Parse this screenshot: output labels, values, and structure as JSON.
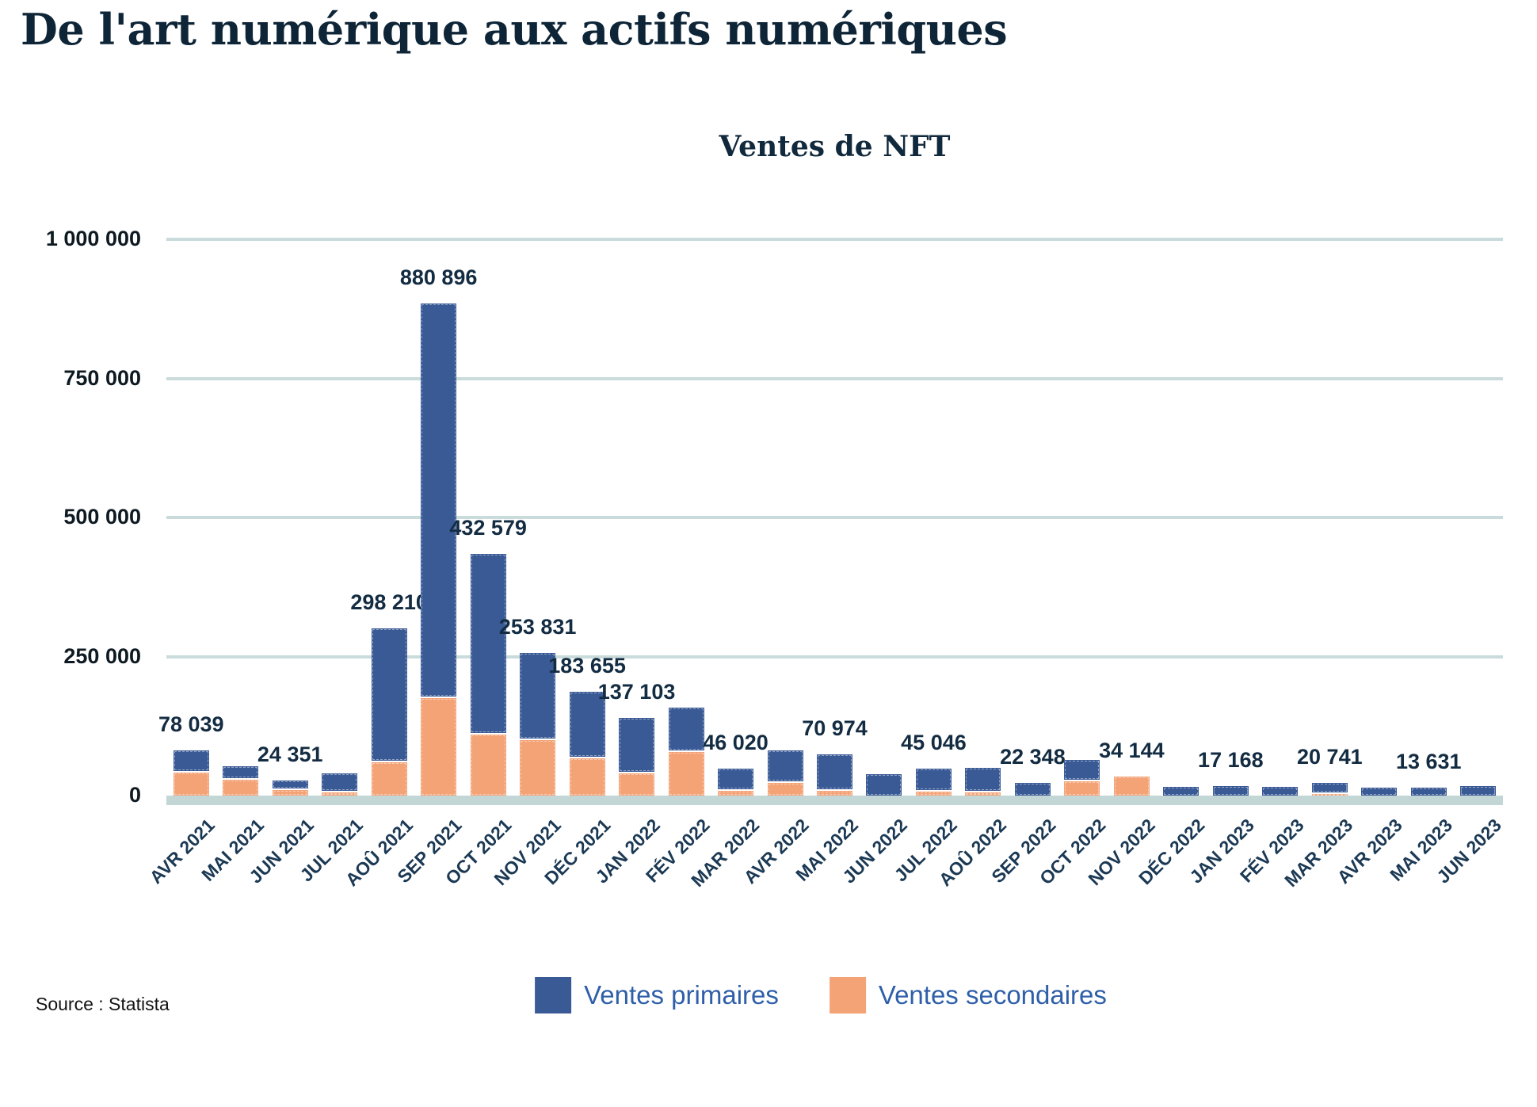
{
  "page": {
    "title": "De l'art numérique aux actifs numériques",
    "source": "Source : Statista"
  },
  "chart_data": {
    "type": "bar",
    "stacked": true,
    "title": "Ventes de NFT",
    "xlabel": "",
    "ylabel": "",
    "ylim": [
      0,
      1000000
    ],
    "grid": true,
    "legend_position": "bottom",
    "colors": {
      "primary": "#3a5a96",
      "secondary": "#f4a377",
      "gridline": "#c9dbdb",
      "axis_band": "#c3d6d6",
      "label_text": "#132c42"
    },
    "yticks": [
      {
        "value": 1000000,
        "label": "1 000 000"
      },
      {
        "value": 750000,
        "label": "750 000"
      },
      {
        "value": 500000,
        "label": "500 000"
      },
      {
        "value": 250000,
        "label": "250 000"
      },
      {
        "value": 0,
        "label": "0"
      }
    ],
    "categories": [
      "AVR 2021",
      "MAI 2021",
      "JUN 2021",
      "JUL 2021",
      "AOÛ 2021",
      "SEP 2021",
      "OCT 2021",
      "NOV 2021",
      "DÉC 2021",
      "JAN 2022",
      "FÉV 2022",
      "MAR 2022",
      "AVR 2022",
      "MAI 2022",
      "JUN 2022",
      "JUL 2022",
      "AOÛ 2022",
      "SEP 2022",
      "OCT 2022",
      "NOV 2022",
      "DÉC 2022",
      "JAN 2023",
      "FÉV 2023",
      "MAR 2023",
      "AVR 2023",
      "MAI 2023",
      "JUN 2023"
    ],
    "series": [
      {
        "name": "Ventes primaires",
        "color": "#3a5a96",
        "values": [
          37039,
          21000,
          14351,
          31000,
          238210,
          705896,
          322579,
          153831,
          116655,
          97103,
          77000,
          37020,
          55000,
          61974,
          38000,
          38046,
          41000,
          22348,
          36000,
          0,
          15000,
          17168,
          15000,
          17741,
          14000,
          13631,
          17000
        ]
      },
      {
        "name": "Ventes secondaires",
        "color": "#f4a377",
        "values": [
          41000,
          29000,
          10000,
          6000,
          60000,
          175000,
          110000,
          100000,
          67000,
          40000,
          78000,
          9000,
          23000,
          9000,
          0,
          7000,
          6000,
          0,
          26000,
          34144,
          0,
          0,
          0,
          3000,
          0,
          0,
          0
        ]
      }
    ],
    "bar_total_labels": [
      "78 039",
      null,
      "24 351",
      null,
      "298 210",
      "880 896",
      "432 579",
      "253 831",
      "183 655",
      "137 103",
      null,
      "46 020",
      null,
      "70 974",
      null,
      "45 046",
      null,
      "22 348",
      null,
      "34 144",
      null,
      "17 168",
      null,
      "20 741",
      null,
      "13 631",
      null
    ]
  },
  "legend": {
    "items": [
      {
        "label": "Ventes primaires",
        "color": "#3a5a96"
      },
      {
        "label": "Ventes secondaires",
        "color": "#f4a377"
      }
    ]
  }
}
